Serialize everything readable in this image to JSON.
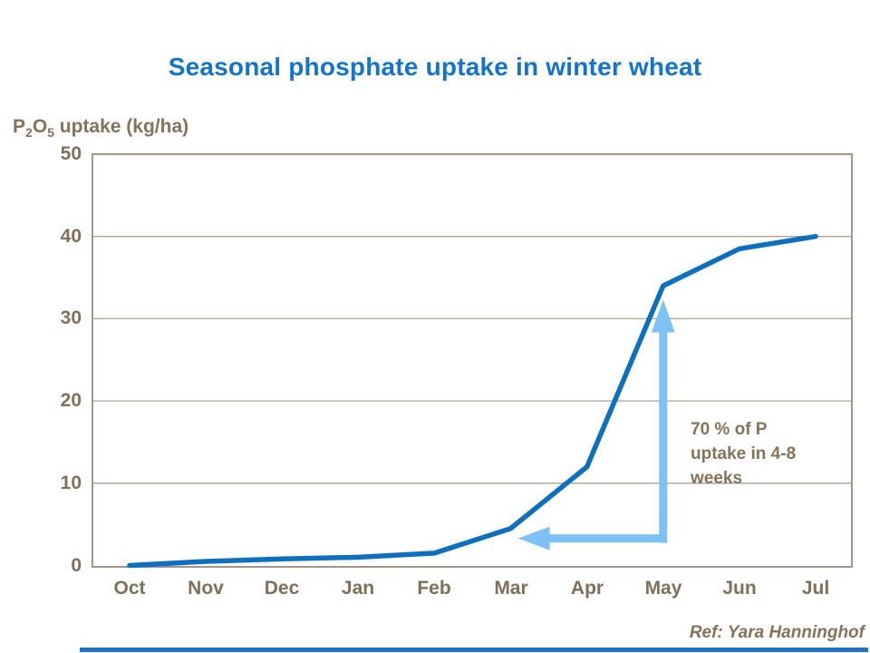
{
  "slide": {
    "title": "Seasonal phosphate uptake in winter wheat",
    "footer_ref": "Ref: Yara Hanninghof"
  },
  "y_axis_label": {
    "p": "P",
    "sub2": "2",
    "o": "O",
    "sub5": "5",
    "rest": " uptake (kg/ha)"
  },
  "annotation": {
    "line1": "70 % of P",
    "line2": "uptake in 4-8",
    "line3": "weeks"
  },
  "colors": {
    "title_blue": "#1374C9",
    "line_blue": "#0D6FBE",
    "arrow_light_blue": "#7EC2F5",
    "text_brown": "#857359",
    "axis_border_brown": "#A59586",
    "gridline_brown": "#AFA193",
    "footer_bar_blue": "#2173C4"
  },
  "chart_data": {
    "type": "line",
    "categories": [
      "Oct",
      "Nov",
      "Dec",
      "Jan",
      "Feb",
      "Mar",
      "Apr",
      "May",
      "Jun",
      "Jul"
    ],
    "series": [
      {
        "name": "P2O5 uptake",
        "values": [
          0,
          0.5,
          0.8,
          1,
          1.5,
          4.5,
          12,
          34,
          38.5,
          40
        ]
      }
    ],
    "title": "Seasonal phosphate uptake in winter wheat",
    "xlabel": "",
    "ylabel": "P2O5 uptake (kg/ha)",
    "ylim": [
      0,
      50
    ],
    "yticks": [
      0,
      10,
      20,
      30,
      40,
      50
    ],
    "grid": true,
    "legend": false,
    "annotation": "70 % of P uptake in 4-8 weeks (arrow from Mar to May on steep rise)"
  }
}
